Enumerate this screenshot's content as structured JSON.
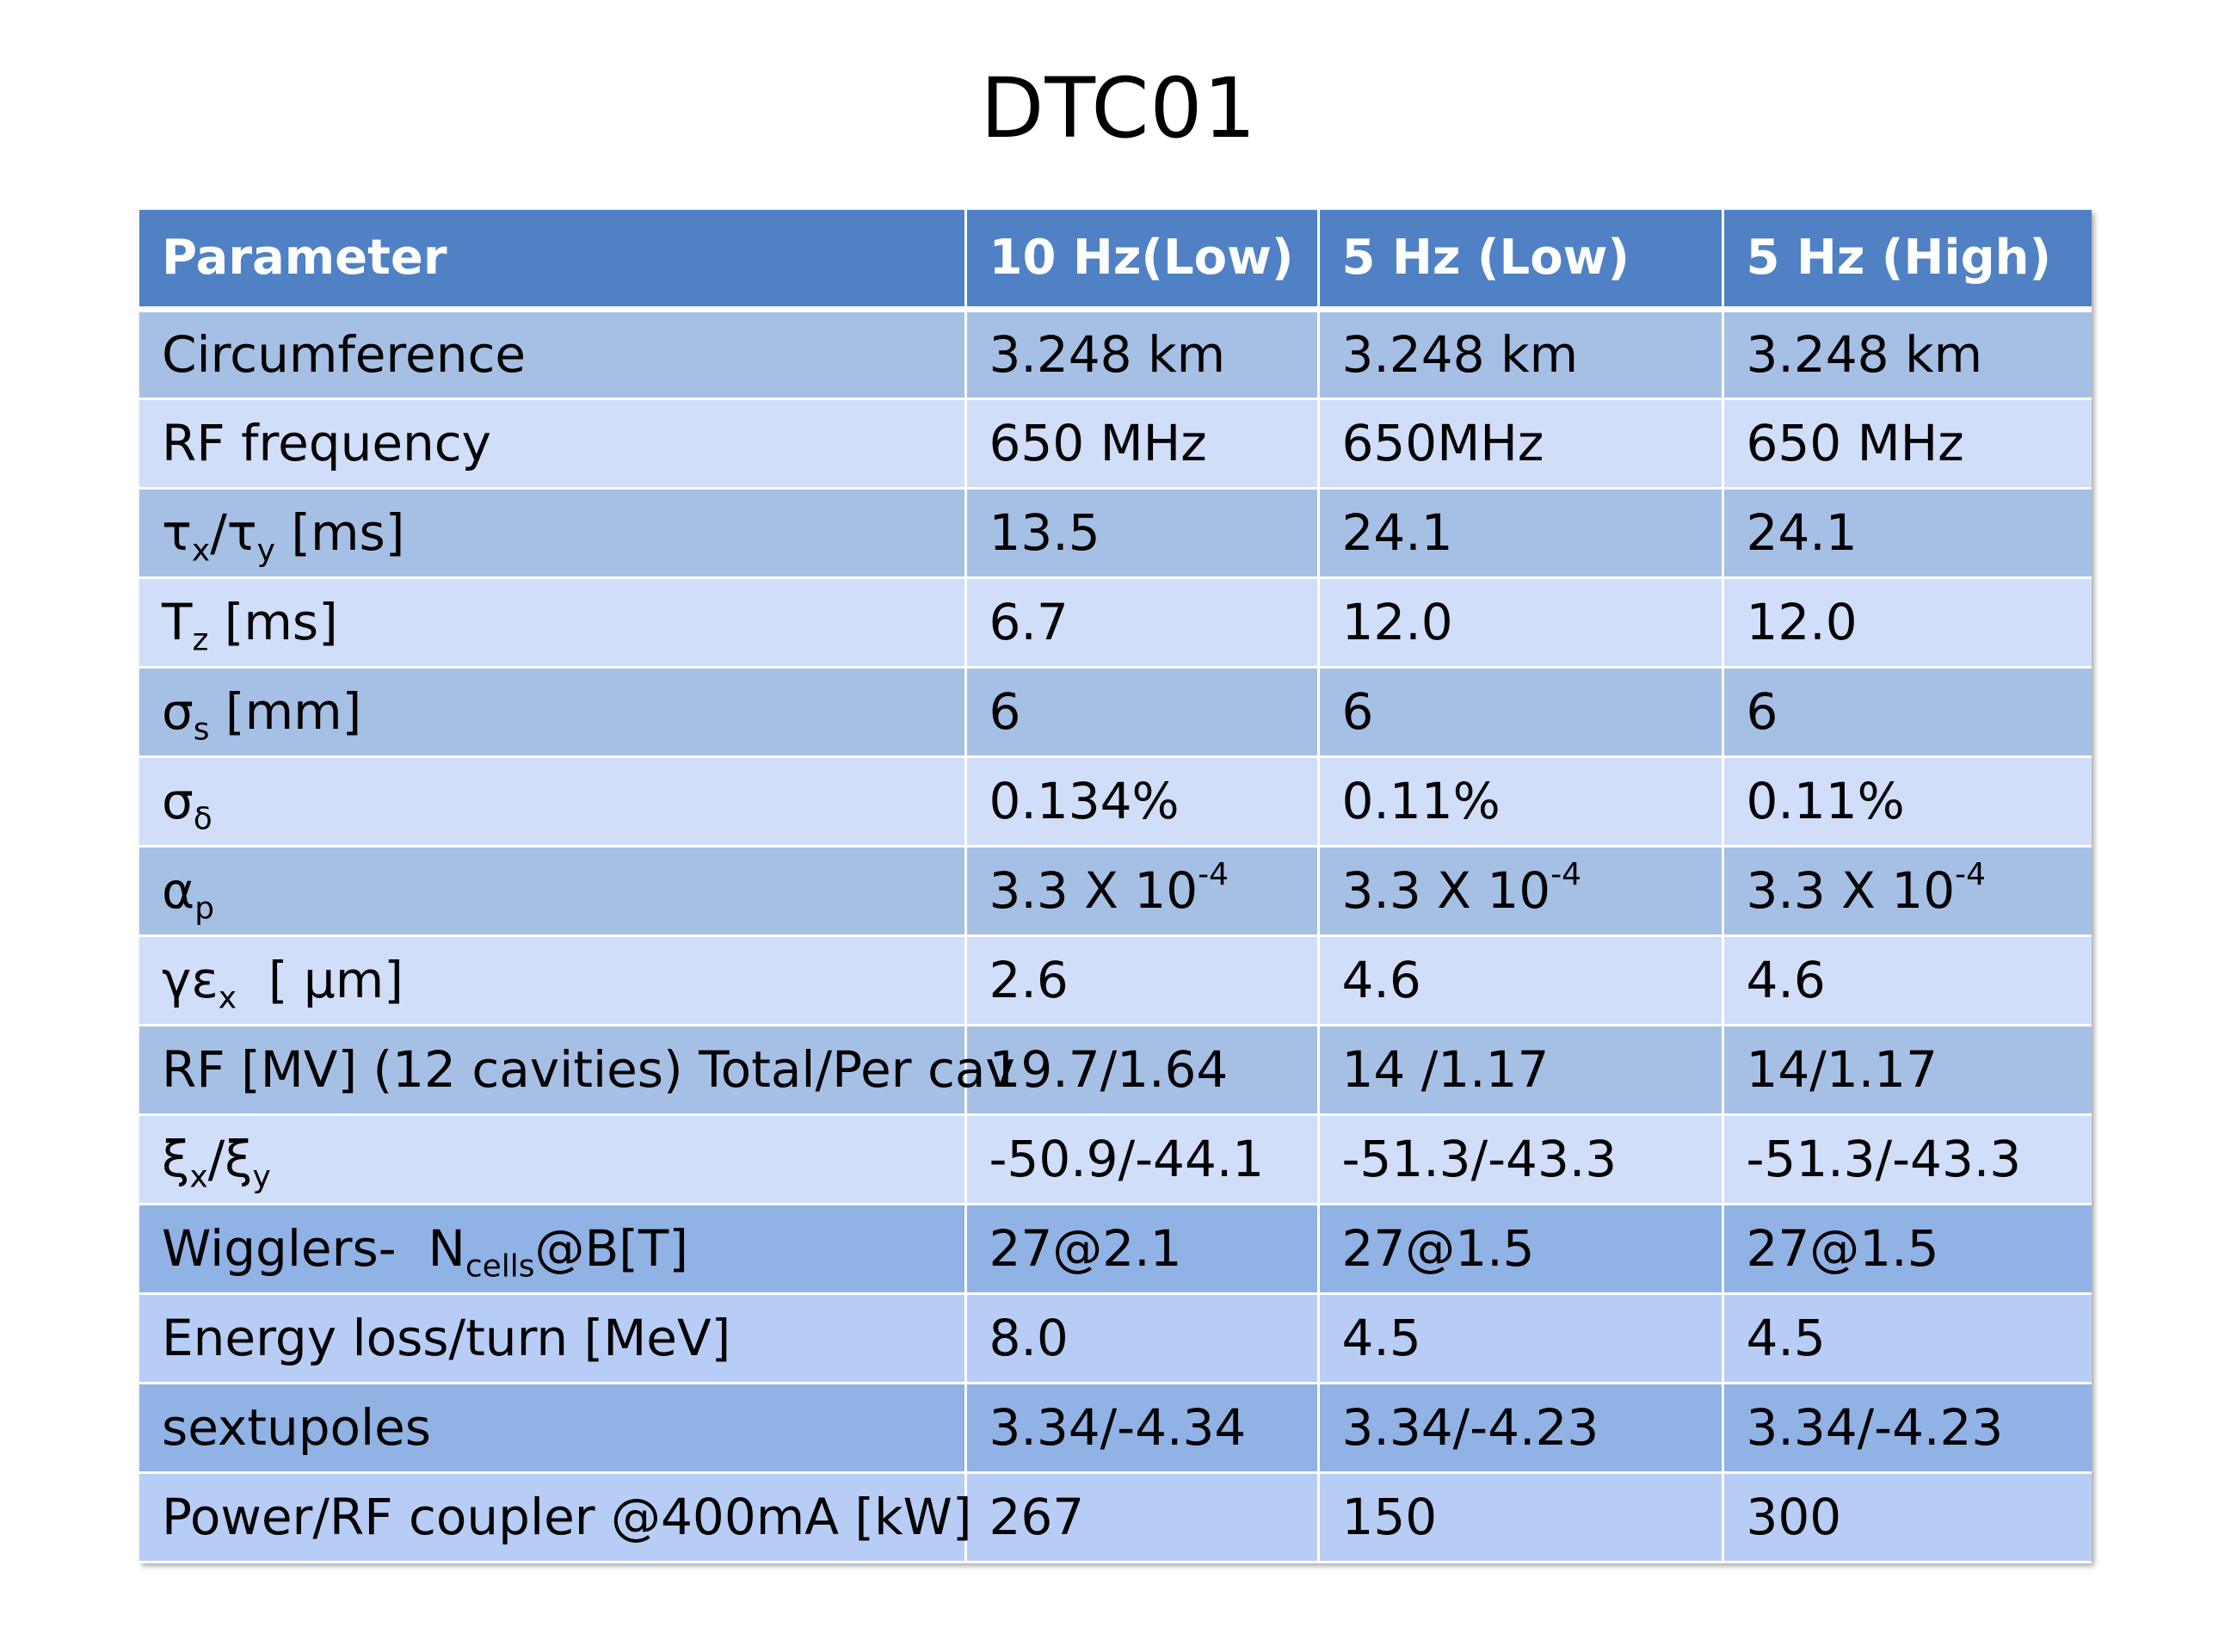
{
  "title": "DTC01",
  "table": {
    "headers": [
      "Parameter",
      "10  Hz(Low)",
      "5 Hz (Low)",
      "5 Hz (High)"
    ],
    "rows": [
      {
        "param": "Circumference",
        "v": [
          "3.248 km",
          "3.248 km",
          "3.248 km"
        ]
      },
      {
        "param": "RF frequency",
        "v": [
          "650 MHz",
          "650MHz",
          "650 MHz"
        ]
      },
      {
        "param_parts": {
          "a": "τ",
          "a_sub": "x",
          "b": "/τ",
          "b_sub": "y",
          "c": " [ms]"
        },
        "v": [
          "13.5",
          "24.1",
          "24.1"
        ]
      },
      {
        "param_parts": {
          "a": "T",
          "a_sub": "z",
          "c": " [ms]"
        },
        "v": [
          "6.7",
          "12.0",
          "12.0"
        ]
      },
      {
        "param_parts": {
          "a": "σ",
          "a_sub": "s",
          "c": " [mm]"
        },
        "v": [
          "6",
          "6",
          "6"
        ]
      },
      {
        "param_parts": {
          "a": "σ",
          "a_sub": "δ"
        },
        "v": [
          "0.134%",
          "0.11%",
          "0.11%"
        ]
      },
      {
        "param_parts": {
          "a": "α",
          "a_sub": "p"
        },
        "v_sup": [
          {
            "base": "3.3 X 10",
            "sup": "-4"
          },
          {
            "base": "3.3 X 10",
            "sup": "-4"
          },
          {
            "base": "3.3 X 10",
            "sup": "-4"
          }
        ]
      },
      {
        "param_parts": {
          "a": "γε",
          "a_sub": "x",
          "c": "  [ μm]"
        },
        "v": [
          "2.6",
          "4.6",
          "4.6"
        ]
      },
      {
        "param": "RF [MV] (12 cavities) Total/Per cav",
        "v": [
          "19.7/1.64",
          "14 /1.17",
          "14/1.17"
        ]
      },
      {
        "param_parts": {
          "a": "ξ",
          "a_sub": "x",
          "b": "/ξ",
          "b_sub": "y"
        },
        "v": [
          "-50.9/-44.1",
          "-51.3/-43.3",
          "-51.3/-43.3"
        ]
      },
      {
        "param_parts": {
          "a": "Wigglers-  N",
          "a_sub": "cells",
          "c": "@B[T]"
        },
        "v": [
          "27@2.1",
          "27@1.5",
          "27@1.5"
        ]
      },
      {
        "param": "Energy loss/turn [MeV]",
        "v": [
          "8.0",
          "4.5",
          "4.5"
        ]
      },
      {
        "param": "sextupoles",
        "v": [
          "3.34/-4.34",
          "3.34/-4.23",
          "3.34/-4.23"
        ]
      },
      {
        "param": "Power/RF coupler @400mA [kW]",
        "v": [
          "267",
          "150",
          "300"
        ]
      }
    ]
  }
}
